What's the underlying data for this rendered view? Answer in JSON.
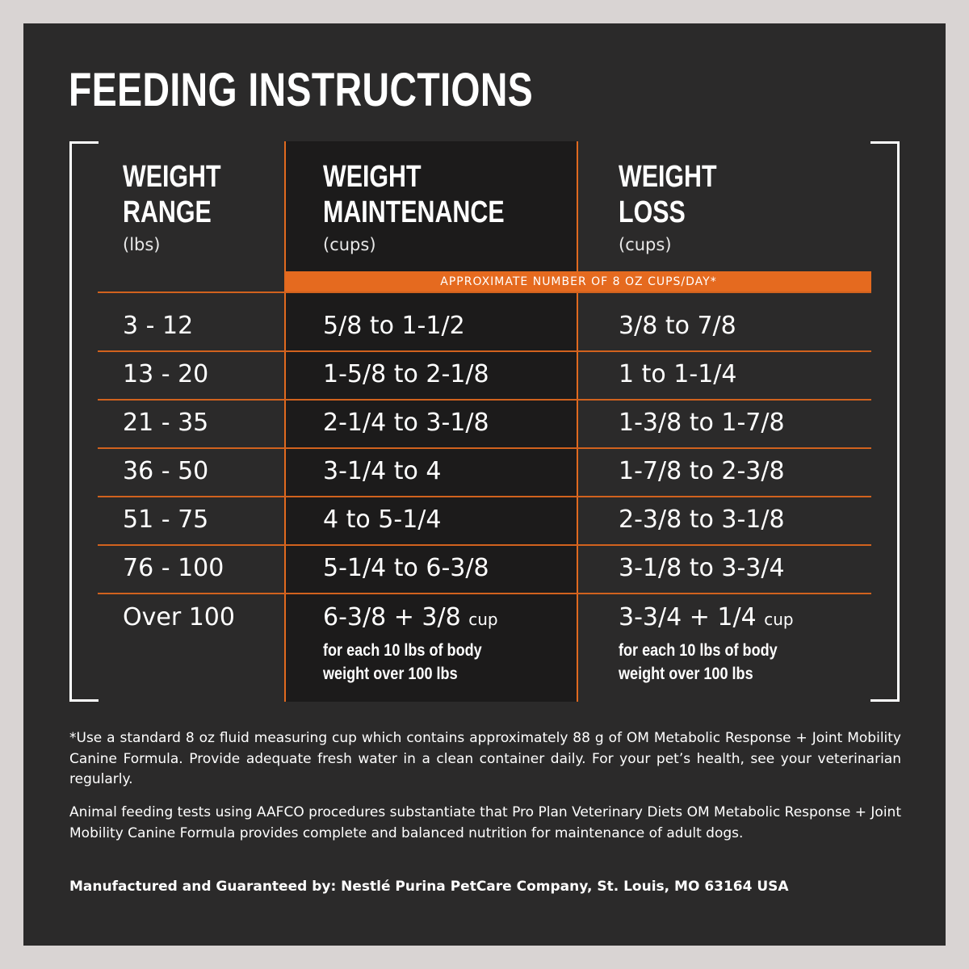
{
  "title": "FEEDING INSTRUCTIONS",
  "columns": [
    {
      "heading_line1": "WEIGHT",
      "heading_line2": "RANGE",
      "unit": "(lbs)"
    },
    {
      "heading_line1": "WEIGHT",
      "heading_line2": "MAINTENANCE",
      "unit": "(cups)"
    },
    {
      "heading_line1": "WEIGHT",
      "heading_line2": "LOSS",
      "unit": "(cups)"
    }
  ],
  "band_label": "APPROXIMATE NUMBER OF 8 OZ CUPS/DAY*",
  "rows": [
    {
      "range": "3 - 12",
      "maintenance": "5/8 to 1-1/2",
      "loss": "3/8 to 7/8"
    },
    {
      "range": "13 - 20",
      "maintenance": "1-5/8 to 2-1/8",
      "loss": "1 to 1-1/4"
    },
    {
      "range": "21 - 35",
      "maintenance": "2-1/4 to 3-1/8",
      "loss": "1-3/8 to 1-7/8"
    },
    {
      "range": "36 - 50",
      "maintenance": "3-1/4 to 4",
      "loss": "1-7/8 to 2-3/8"
    },
    {
      "range": "51 - 75",
      "maintenance": "4 to 5-1/4",
      "loss": "2-3/8 to 3-1/8"
    },
    {
      "range": "76 - 100",
      "maintenance": "5-1/4 to 6-3/8",
      "loss": "3-1/8 to 3-3/4"
    }
  ],
  "last_row": {
    "range": "Over 100",
    "maintenance": "6-3/8 + 3/8",
    "maintenance_unit": "cup",
    "loss": "3-3/4 + 1/4",
    "loss_unit": "cup",
    "note_line1": "for each 10 lbs of body",
    "note_line2": "weight over 100 lbs"
  },
  "footnotes": {
    "cup_note": "*Use a standard 8 oz fluid measuring cup which contains approximately 88 g of OM Metabolic Response + Joint Mobility Canine Formula. Provide adequate fresh water in a clean container daily. For your pet’s health, see your veterinarian regularly.",
    "aafco_note": "Animal feeding tests using AAFCO procedures substantiate that Pro Plan Veterinary Diets OM Metabolic Response + Joint Mobility Canine Formula provides complete and balanced nutrition for maintenance of adult dogs.",
    "manufacturer": "Manufactured and Guaranteed by: Nestlé Purina PetCare Company, St. Louis, MO 63164 USA"
  },
  "colors": {
    "background": "#2b2a2a",
    "accent": "#e56a1f",
    "highlight_column": "#1c1b1b"
  }
}
